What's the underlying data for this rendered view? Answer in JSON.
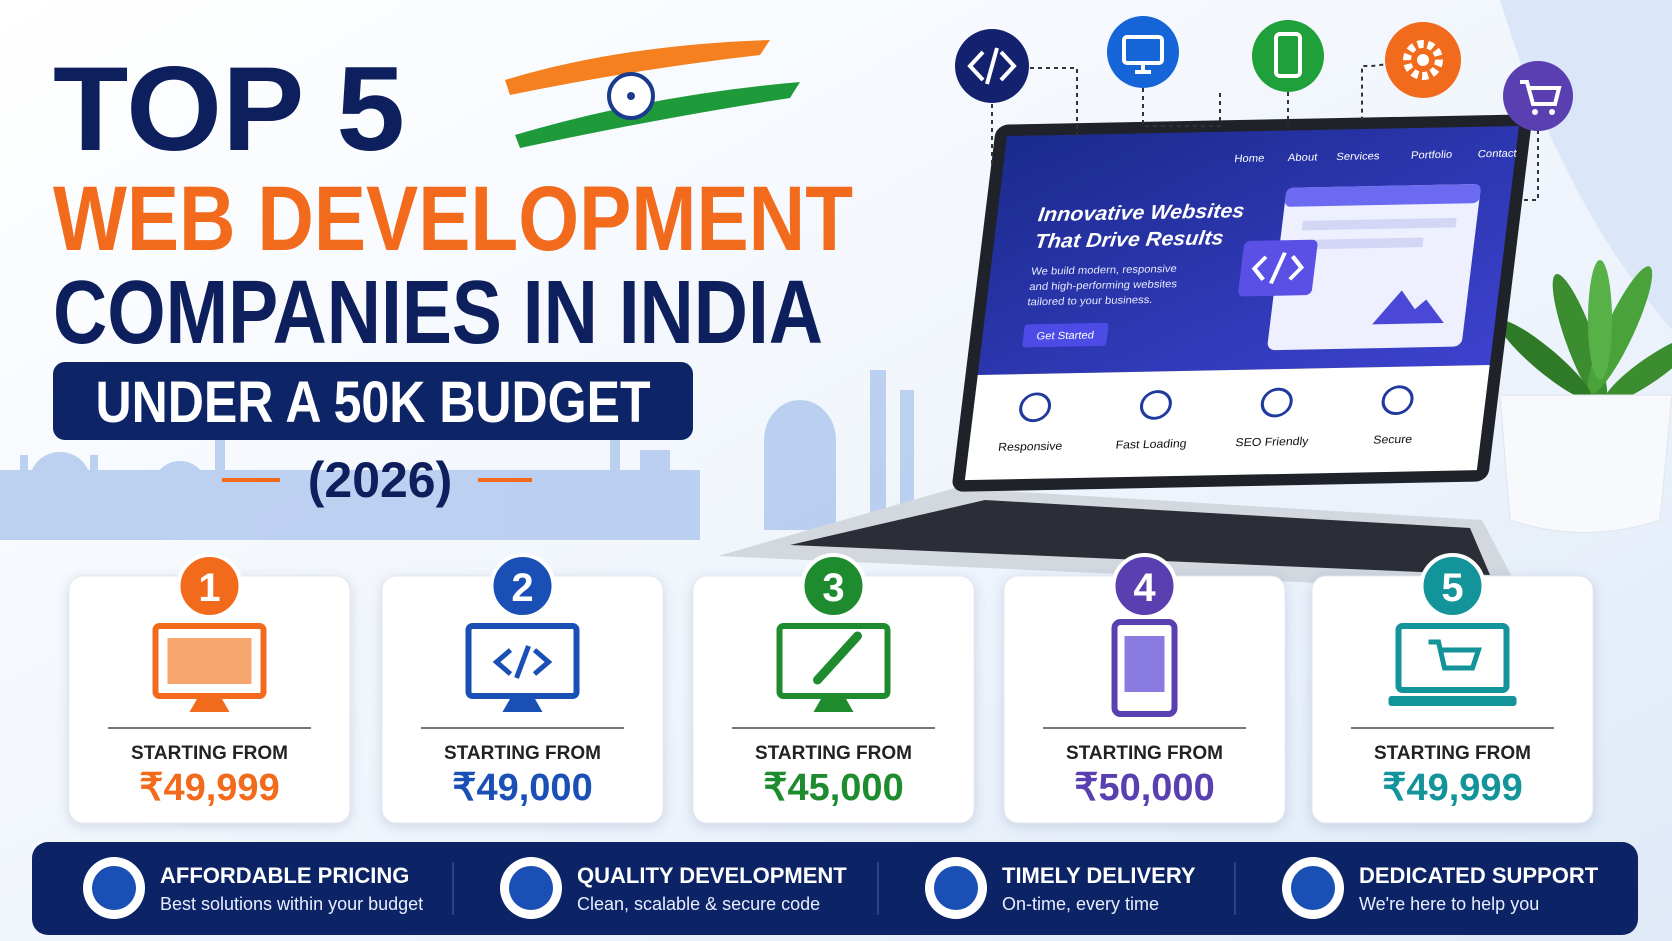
{
  "header": {
    "title_line1": "TOP 5",
    "title_line2": "WEB DEVELOPMENT",
    "title_line3": "COMPANIES IN INDIA",
    "banner": "UNDER A 50K BUDGET",
    "year": "(2026)"
  },
  "laptop": {
    "nav": [
      "Home",
      "About",
      "Services",
      "Portfolio",
      "Contact"
    ],
    "headline": [
      "Innovative Websites",
      "That Drive Results"
    ],
    "body": [
      "We build modern, responsive",
      "and high-performing websites",
      "tailored to your business."
    ],
    "button": "Get Started",
    "features": [
      "Responsive",
      "Fast Loading",
      "SEO Friendly",
      "Secure"
    ]
  },
  "cards": [
    {
      "rank": "1",
      "label": "STARTING FROM",
      "price": "₹49,999"
    },
    {
      "rank": "2",
      "label": "STARTING FROM",
      "price": "₹49,000"
    },
    {
      "rank": "3",
      "label": "STARTING FROM",
      "price": "₹45,000"
    },
    {
      "rank": "4",
      "label": "STARTING FROM",
      "price": "₹50,000"
    },
    {
      "rank": "5",
      "label": "STARTING FROM",
      "price": "₹49,999"
    }
  ],
  "benefits": [
    {
      "title": "AFFORDABLE PRICING",
      "subtitle": "Best solutions within your budget"
    },
    {
      "title": "QUALITY DEVELOPMENT",
      "subtitle": "Clean, scalable & secure code"
    },
    {
      "title": "TIMELY DELIVERY",
      "subtitle": "On-time, every time"
    },
    {
      "title": "DEDICATED SUPPORT",
      "subtitle": "We're here to help you"
    }
  ]
}
